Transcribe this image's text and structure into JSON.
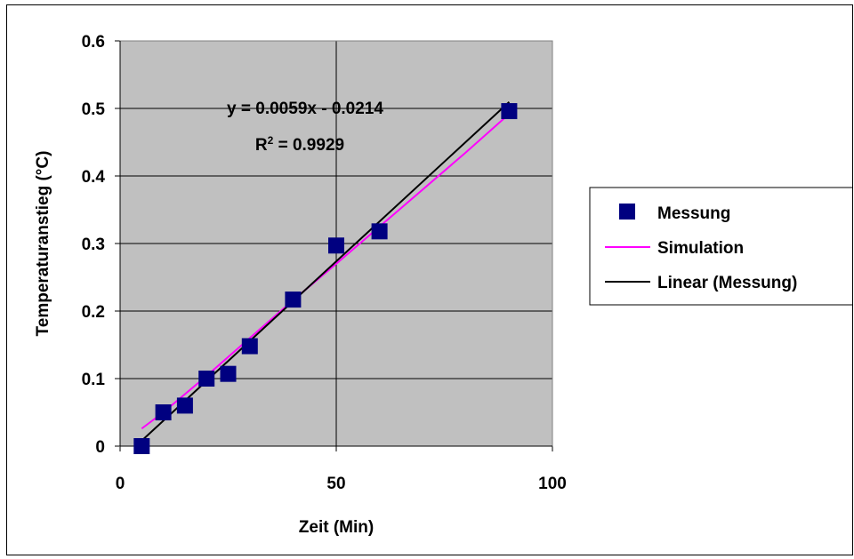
{
  "chart_data": {
    "type": "scatter",
    "xlabel": "Zeit (Min)",
    "ylabel": "Temperaturanstieg (°C)",
    "xlim": [
      0,
      100
    ],
    "ylim": [
      0,
      0.6
    ],
    "xticks": [
      0,
      50,
      100
    ],
    "yticks": [
      0,
      0.1,
      0.2,
      0.3,
      0.4,
      0.5,
      0.6
    ],
    "x_tick_labels": [
      "0",
      "50",
      "100"
    ],
    "y_tick_labels": [
      "0",
      "0.1",
      "0.2",
      "0.3",
      "0.4",
      "0.5",
      "0.6"
    ],
    "grid": true,
    "plot_background": "#C0C0C0",
    "legend_position": "right",
    "annotation": {
      "equation": "y = 0.0059x - 0.0214",
      "r2_prefix": "R",
      "r2_sup": "2",
      "r2_suffix": " = 0.9929"
    },
    "series": [
      {
        "name": "Messung",
        "kind": "markers",
        "color": "#000080",
        "x": [
          5,
          10,
          15,
          20,
          25,
          30,
          40,
          50,
          60,
          90
        ],
        "y": [
          0.0,
          0.05,
          0.06,
          0.1,
          0.107,
          0.148,
          0.217,
          0.297,
          0.318,
          0.496
        ]
      },
      {
        "name": "Simulation",
        "kind": "line",
        "color": "#FF00FF",
        "x": [
          5,
          10,
          20,
          30,
          40,
          50,
          60,
          70,
          80,
          90
        ],
        "y": [
          0.026,
          0.05,
          0.104,
          0.16,
          0.216,
          0.27,
          0.325,
          0.38,
          0.435,
          0.492
        ]
      },
      {
        "name": "Linear (Messung)",
        "kind": "trendline",
        "color": "#000000",
        "slope": 0.0059,
        "intercept": -0.0214,
        "x": [
          5,
          90
        ]
      }
    ]
  }
}
